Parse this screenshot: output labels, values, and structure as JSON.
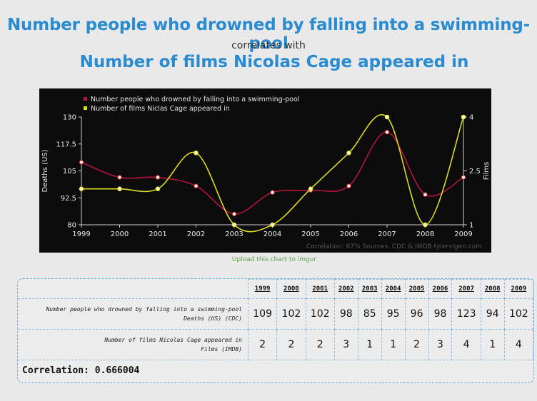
{
  "header": {
    "title_top": "Number people who drowned by falling into a swimming-pool",
    "subtitle": "correlates with",
    "title_bottom": "Number of films Nicolas Cage appeared in"
  },
  "upload_link": "Upload this chart to imgur",
  "chart_data": {
    "type": "line",
    "x": [
      1999,
      2000,
      2001,
      2002,
      2003,
      2004,
      2005,
      2006,
      2007,
      2008,
      2009
    ],
    "series": [
      {
        "name": "Number people who drowned by falling into a swimming-pool",
        "axis": "left",
        "color": "#b5123f",
        "values": [
          109,
          102,
          102,
          98,
          85,
          95,
          96,
          98,
          123,
          94,
          102
        ]
      },
      {
        "name": "Number of films Niclas Cage appeared in",
        "axis": "right",
        "color": "#dcdc1e",
        "values": [
          2,
          2,
          2,
          3,
          1,
          1,
          2,
          3,
          4,
          1,
          4
        ]
      }
    ],
    "ylabel_left": "Deaths (US)",
    "ylabel_right": "Films",
    "ylim_left": [
      80,
      130
    ],
    "yticks_left": [
      "80",
      "92.5",
      "105",
      "117.5",
      "130"
    ],
    "ylim_right": [
      1,
      4
    ],
    "yticks_right": [
      "1",
      "2.5",
      "4"
    ],
    "xticks": [
      "1999",
      "2000",
      "2001",
      "2002",
      "2003",
      "2004",
      "2005",
      "2006",
      "2007",
      "2008",
      "2009"
    ],
    "footer": "Correlation: 67%     Sources: CDC & IMDB  tylervigen.com",
    "background": "#0c0c0c",
    "legend": "top-left",
    "grid": false
  },
  "table": {
    "years": [
      "1999",
      "2000",
      "2001",
      "2002",
      "2003",
      "2004",
      "2005",
      "2006",
      "2007",
      "2008",
      "2009"
    ],
    "rows": [
      {
        "label": "Number people who drowned by falling into a swimming-pool",
        "sublabel": "Deaths (US) (CDC)",
        "values": [
          "109",
          "102",
          "102",
          "98",
          "85",
          "95",
          "96",
          "98",
          "123",
          "94",
          "102"
        ]
      },
      {
        "label": "Number of films Nicolas Cage appeared in",
        "sublabel": "Films (IMDB)",
        "values": [
          "2",
          "2",
          "2",
          "3",
          "1",
          "1",
          "2",
          "3",
          "4",
          "1",
          "4"
        ]
      }
    ],
    "correlation": "Correlation: 0.666004"
  }
}
